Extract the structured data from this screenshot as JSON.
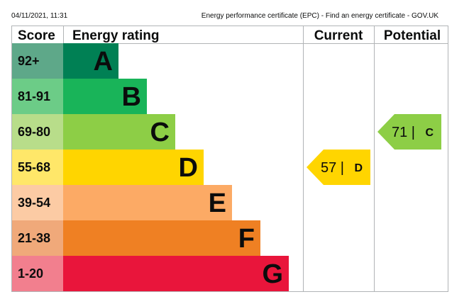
{
  "header": {
    "timestamp": "04/11/2021, 11:31",
    "page_title": "Energy performance certificate (EPC) - Find an energy certificate - GOV.UK"
  },
  "chart_data": {
    "type": "bar",
    "columns": {
      "score": "Score",
      "rating": "Energy rating",
      "current": "Current",
      "potential": "Potential"
    },
    "bands": [
      {
        "letter": "A",
        "range": "92+",
        "score_color": "#5ea889",
        "bar_color": "#008054"
      },
      {
        "letter": "B",
        "range": "81-91",
        "score_color": "#6ccc87",
        "bar_color": "#19b459"
      },
      {
        "letter": "C",
        "range": "69-80",
        "score_color": "#b8dd8a",
        "bar_color": "#8dce46"
      },
      {
        "letter": "D",
        "range": "55-68",
        "score_color": "#ffe769",
        "bar_color": "#ffd500"
      },
      {
        "letter": "E",
        "range": "39-54",
        "score_color": "#fccba4",
        "bar_color": "#fcaa65"
      },
      {
        "letter": "F",
        "range": "21-38",
        "score_color": "#f0a97a",
        "bar_color": "#ef8023"
      },
      {
        "letter": "G",
        "range": "1-20",
        "score_color": "#f27f8e",
        "bar_color": "#e9153b"
      }
    ],
    "current": {
      "score": 57,
      "band": "D",
      "label": "57 |",
      "letter": "D",
      "color": "#ffd500"
    },
    "potential": {
      "score": 71,
      "band": "C",
      "label": "71 |",
      "letter": "C",
      "color": "#8dce46"
    }
  }
}
